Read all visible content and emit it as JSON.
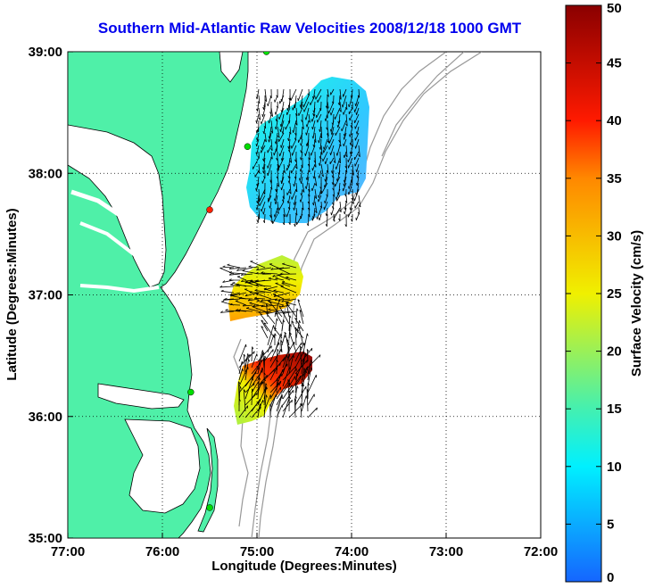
{
  "title": "Southern Mid-Atlantic Raw Velocities 2008/12/18 1000 GMT",
  "xlabel": "Longitude (Degrees:Minutes)",
  "ylabel": "Latitude (Degrees:Minutes)",
  "x_ticks": [
    "77:00",
    "76:00",
    "75:00",
    "74:00",
    "73:00",
    "72:00"
  ],
  "y_ticks": [
    "39:00",
    "38:00",
    "37:00",
    "36:00",
    "35:00"
  ],
  "colorbar": {
    "label": "Surface Velocity (cm/s)",
    "ticks": [
      "0",
      "5",
      "10",
      "15",
      "20",
      "25",
      "30",
      "35",
      "40",
      "45",
      "50"
    ],
    "range": [
      0,
      50
    ]
  },
  "colors": {
    "land": "#4ff0a8",
    "water": "#ffffff",
    "title": "#0000ee",
    "bathymetry": "#999999",
    "station_active": "#00dd00",
    "station_inactive": "#ff2200"
  },
  "chart_data": {
    "type": "map",
    "extent": {
      "lon": [
        -77,
        -72
      ],
      "lat": [
        35,
        39
      ]
    },
    "grid": true,
    "stations": [
      {
        "lon": -74.9,
        "lat": 39.0,
        "status": "active"
      },
      {
        "lon": -75.1,
        "lat": 38.22,
        "status": "active"
      },
      {
        "lon": -75.5,
        "lat": 37.7,
        "status": "inactive"
      },
      {
        "lon": -75.7,
        "lat": 36.2,
        "status": "active"
      },
      {
        "lon": -75.5,
        "lat": 35.25,
        "status": "active"
      }
    ],
    "velocity_regions": [
      {
        "name": "north",
        "lon": [
          -75.05,
          -73.85
        ],
        "lat": [
          37.65,
          38.82
        ],
        "speed_cm_s": [
          3,
          18
        ],
        "direction": "south-southwest"
      },
      {
        "name": "middle",
        "lon": [
          -75.1,
          -74.4
        ],
        "lat": [
          36.8,
          37.3
        ],
        "speed_cm_s": [
          20,
          30
        ],
        "direction": "west"
      },
      {
        "name": "south",
        "lon": [
          -75.25,
          -74.4
        ],
        "lat": [
          35.9,
          36.45
        ],
        "speed_cm_s": [
          15,
          50
        ],
        "direction": "north-northeast"
      }
    ]
  }
}
